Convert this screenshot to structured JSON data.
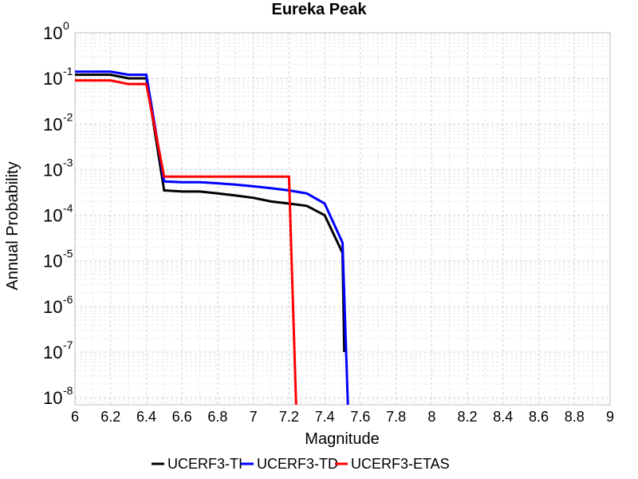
{
  "chart_data": {
    "type": "line",
    "title": "Eureka Peak",
    "xlabel": "Magnitude",
    "ylabel": "Annual Probability",
    "xlim": [
      6,
      9
    ],
    "ylim": [
      7e-09,
      1
    ],
    "yscale": "log",
    "grid": true,
    "legend_position": "bottom",
    "x_ticks": [
      "6",
      "6.2",
      "6.4",
      "6.6",
      "6.8",
      "7",
      "7.2",
      "7.4",
      "7.6",
      "7.8",
      "8",
      "8.2",
      "8.4",
      "8.6",
      "8.8",
      "9"
    ],
    "y_ticks": [
      {
        "value": 1,
        "base": "10",
        "exp": "0"
      },
      {
        "value": 0.1,
        "base": "10",
        "exp": "-1"
      },
      {
        "value": 0.01,
        "base": "10",
        "exp": "-2"
      },
      {
        "value": 0.001,
        "base": "10",
        "exp": "-3"
      },
      {
        "value": 0.0001,
        "base": "10",
        "exp": "-4"
      },
      {
        "value": 1e-05,
        "base": "10",
        "exp": "-5"
      },
      {
        "value": 1e-06,
        "base": "10",
        "exp": "-6"
      },
      {
        "value": 1e-07,
        "base": "10",
        "exp": "-7"
      },
      {
        "value": 1e-08,
        "base": "10",
        "exp": "-8"
      }
    ],
    "series": [
      {
        "name": "UCERF3-TI",
        "color": "#000000",
        "x": [
          6.0,
          6.2,
          6.3,
          6.4,
          6.5,
          6.6,
          6.7,
          6.8,
          6.9,
          7.0,
          7.1,
          7.2,
          7.3,
          7.4,
          7.5,
          7.51
        ],
        "y": [
          0.12,
          0.12,
          0.1,
          0.1,
          0.00035,
          0.00033,
          0.00033,
          0.0003,
          0.00027,
          0.00024,
          0.0002,
          0.00018,
          0.00016,
          0.0001,
          1.5e-05,
          1e-07
        ]
      },
      {
        "name": "UCERF3-TD",
        "color": "#0000ff",
        "x": [
          6.0,
          6.2,
          6.3,
          6.4,
          6.5,
          6.6,
          6.7,
          6.8,
          6.9,
          7.0,
          7.1,
          7.2,
          7.3,
          7.4,
          7.5,
          7.53
        ],
        "y": [
          0.14,
          0.14,
          0.12,
          0.12,
          0.00055,
          0.00053,
          0.00053,
          0.0005,
          0.00047,
          0.00043,
          0.00039,
          0.00035,
          0.0003,
          0.00018,
          2.5e-05,
          7e-09
        ]
      },
      {
        "name": "UCERF3-ETAS",
        "color": "#ff0000",
        "x": [
          6.0,
          6.2,
          6.3,
          6.4,
          6.5,
          7.2,
          7.24
        ],
        "y": [
          0.09,
          0.09,
          0.075,
          0.075,
          0.0007,
          0.0007,
          7e-09
        ]
      }
    ]
  }
}
